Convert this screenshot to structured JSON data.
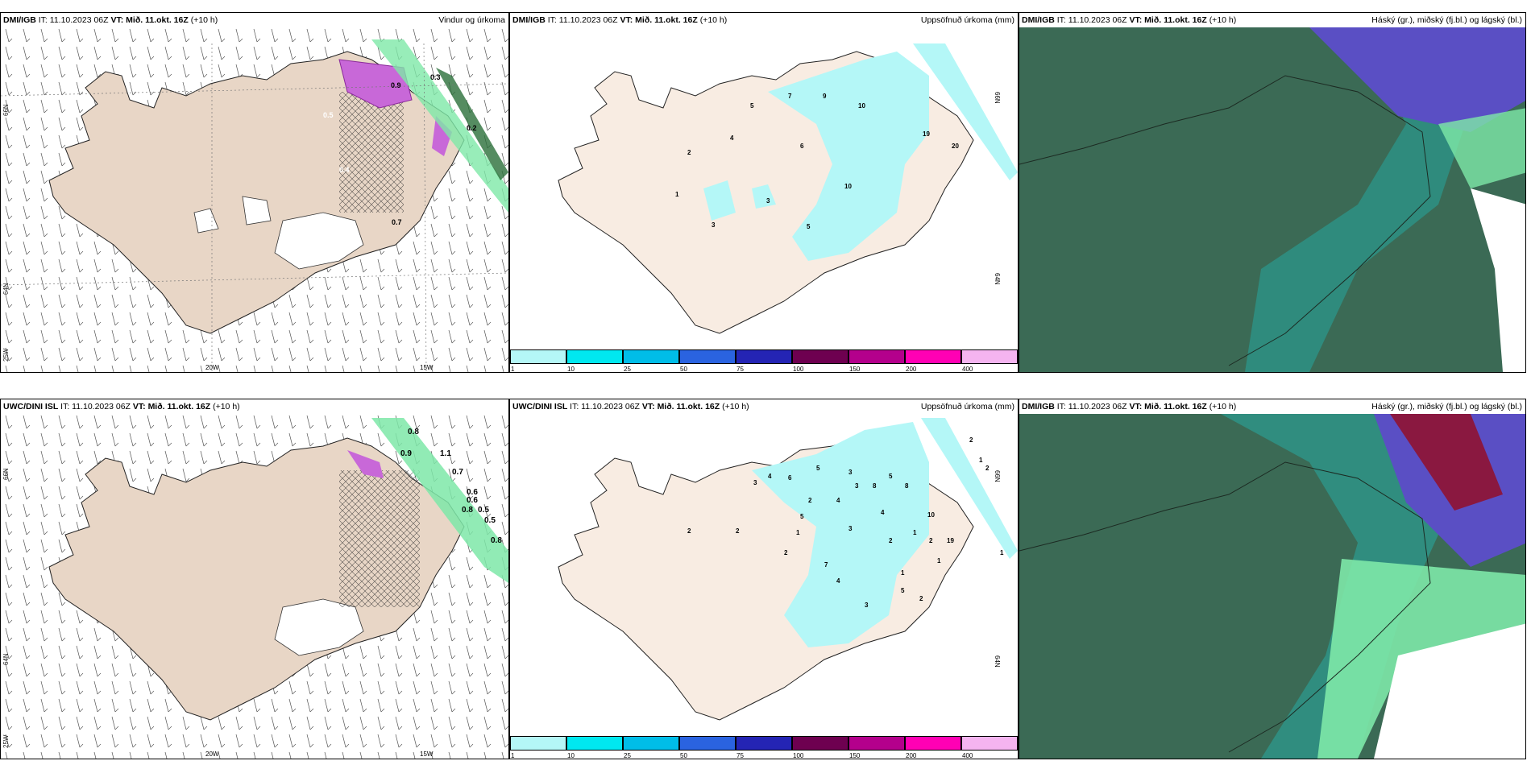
{
  "panels": [
    {
      "model": "DMI/IGB",
      "it": "IT: 11.10.2023 06Z",
      "vt_label": "VT:",
      "vt": "Mið. 11.okt. 16Z",
      "lead": "(+10 h)",
      "product": "Vindur og úrkoma"
    },
    {
      "model": "DMI/IGB",
      "it": "IT: 11.10.2023 06Z",
      "vt_label": "VT:",
      "vt": "Mið. 11.okt. 16Z",
      "lead": "(+10 h)",
      "product": "Uppsöfnuð úrkoma (mm)"
    },
    {
      "model": "DMI/IGB",
      "it": "IT: 11.10.2023 06Z",
      "vt_label": "VT:",
      "vt": "Mið. 11.okt. 16Z",
      "lead": "(+10 h)",
      "product": "Háský (gr.), miðský (fj.bl.) og lágský (bl.)"
    },
    {
      "model": "UWC/DINI ISL",
      "it": "IT: 11.10.2023 06Z",
      "vt_label": "VT:",
      "vt": "Mið. 11.okt. 16Z",
      "lead": "(+10 h)",
      "product": "Uppsöfnuð úrkoma (mm)"
    },
    {
      "model": "UWC/DINI ISL",
      "it": "IT: 11.10.2023 06Z",
      "vt_label": "VT:",
      "vt": "Mið. 11.okt. 16Z",
      "lead": "(+10 h)",
      "product": "Uppsöfnuð úrkoma (mm)"
    },
    {
      "model": "DMI/IGB",
      "it": "IT: 11.10.2023 06Z",
      "vt_label": "VT:",
      "vt": "Mið. 11.okt. 16Z",
      "lead": "(+10 h)",
      "product": "Háský (gr.), miðský (fj.bl.) og lágský (bl.)"
    }
  ],
  "grid_labels": {
    "lat_66": "66N",
    "lat_64": "64N",
    "lon_20": "20W",
    "lon_15": "15W",
    "lon_25": "25W"
  },
  "colorbar": {
    "ticks": [
      "1",
      "10",
      "25",
      "50",
      "75",
      "100",
      "150",
      "200",
      "400"
    ],
    "colors": [
      "#b4f7f7",
      "#00e8f0",
      "#00bde8",
      "#2a63e0",
      "#2424b4",
      "#6e0050",
      "#b4008c",
      "#ff00b4",
      "#f5b4f0"
    ]
  },
  "wind_values": {
    "top": [
      "0.3",
      "0.9",
      "0.2",
      "0.5",
      "0.4",
      "0.7"
    ],
    "bottom": [
      "0.8",
      "0.9",
      "1.1",
      "0.7",
      "0.6",
      "0.6",
      "0.8",
      "0.5",
      "0.5",
      "0.8"
    ]
  },
  "precip_values": {
    "top": [
      "5",
      "7",
      "9",
      "10",
      "4",
      "2",
      "6",
      "1",
      "3",
      "3",
      "5",
      "10",
      "19",
      "20"
    ],
    "bottom": [
      "2",
      "2",
      "3",
      "4",
      "6",
      "5",
      "3",
      "3",
      "8",
      "5",
      "8",
      "2",
      "1",
      "2",
      "2",
      "5",
      "4",
      "1",
      "2",
      "3",
      "4",
      "2",
      "7",
      "10",
      "1",
      "2",
      "1",
      "4",
      "1",
      "5",
      "3",
      "2",
      "19",
      "1"
    ]
  },
  "colors": {
    "land": "#f8ece2",
    "land_brown": "#e8d6c6",
    "cloud_dark": "#3b6a55",
    "cloud_teal": "#2f8f82",
    "high_blue": "#5a4fc4",
    "bright_green": "#7ee8a8"
  }
}
